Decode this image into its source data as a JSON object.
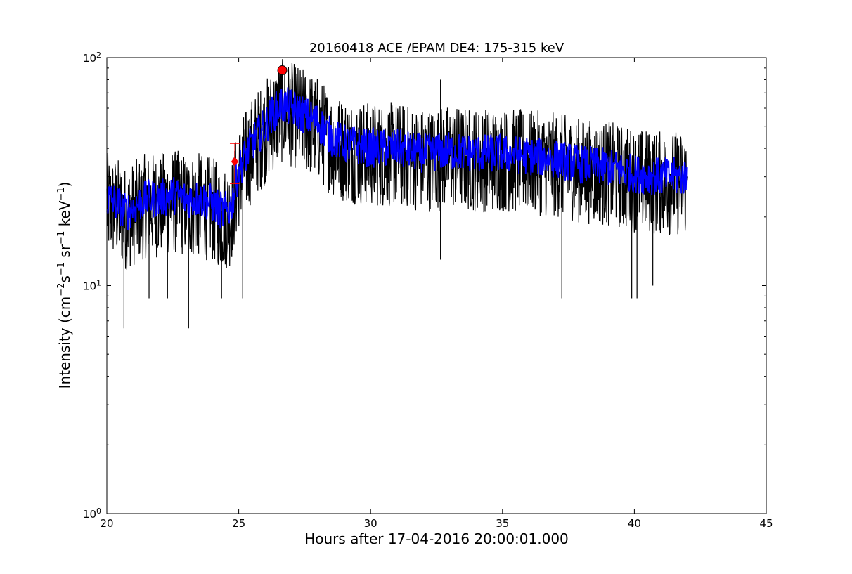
{
  "chart_data": {
    "type": "line",
    "title": "20160418 ACE /EPAM DE4: 175-315 keV",
    "xlabel": "Hours after 17-04-2016 20:00:01.000",
    "ylabel": {
      "prefix": "Intensity (cm",
      "exp1": "−2",
      "s": "s",
      "exp2": "−1",
      "sr": " sr",
      "exp3": "−1",
      "kev": " keV",
      "exp4": "−1",
      "suffix": ")"
    },
    "xlim": [
      20,
      45
    ],
    "ylim": [
      1,
      100
    ],
    "yscale": "log",
    "grid": false,
    "x_ticks": [
      20,
      25,
      30,
      35,
      40,
      45
    ],
    "x_tick_labels": [
      "20",
      "25",
      "30",
      "35",
      "40",
      "45"
    ],
    "y_ticks": [
      {
        "value": 1,
        "base": "10",
        "exp": "0"
      },
      {
        "value": 10,
        "base": "10",
        "exp": "1"
      },
      {
        "value": 100,
        "base": "10",
        "exp": "2"
      }
    ],
    "series": [
      {
        "role": "raw",
        "color": "#000000",
        "points": [
          [
            20.0,
            24
          ],
          [
            20.4,
            23
          ],
          [
            20.7,
            21
          ],
          [
            21.0,
            22
          ],
          [
            21.5,
            24
          ],
          [
            22.0,
            24
          ],
          [
            22.5,
            25
          ],
          [
            23.0,
            24
          ],
          [
            23.5,
            24
          ],
          [
            24.0,
            23
          ],
          [
            24.4,
            21
          ],
          [
            24.7,
            22
          ],
          [
            25.0,
            32
          ],
          [
            25.3,
            38
          ],
          [
            25.6,
            44
          ],
          [
            26.0,
            50
          ],
          [
            26.3,
            57
          ],
          [
            26.6,
            62
          ],
          [
            27.0,
            60
          ],
          [
            27.3,
            58
          ],
          [
            27.6,
            55
          ],
          [
            28.0,
            52
          ],
          [
            28.5,
            45
          ],
          [
            29.0,
            42
          ],
          [
            30.0,
            40
          ],
          [
            31.0,
            40
          ],
          [
            32.0,
            38
          ],
          [
            33.0,
            39
          ],
          [
            34.0,
            38
          ],
          [
            35.0,
            38
          ],
          [
            36.0,
            37
          ],
          [
            37.0,
            36
          ],
          [
            38.0,
            34
          ],
          [
            39.0,
            33
          ],
          [
            40.0,
            31
          ],
          [
            41.0,
            30
          ],
          [
            42.0,
            30
          ]
        ],
        "spread_low": 0.55,
        "spread_high": 1.6
      },
      {
        "role": "smoothed",
        "color": "#0000ff",
        "points": [
          [
            20.0,
            24
          ],
          [
            20.4,
            23
          ],
          [
            20.7,
            21
          ],
          [
            21.0,
            22
          ],
          [
            21.5,
            24
          ],
          [
            22.0,
            24
          ],
          [
            22.5,
            25
          ],
          [
            23.0,
            24
          ],
          [
            23.5,
            24
          ],
          [
            24.0,
            23
          ],
          [
            24.4,
            21
          ],
          [
            24.7,
            22
          ],
          [
            25.0,
            32
          ],
          [
            25.3,
            38
          ],
          [
            25.6,
            44
          ],
          [
            26.0,
            50
          ],
          [
            26.3,
            57
          ],
          [
            26.6,
            62
          ],
          [
            27.0,
            60
          ],
          [
            27.3,
            58
          ],
          [
            27.6,
            55
          ],
          [
            28.0,
            52
          ],
          [
            28.5,
            45
          ],
          [
            29.0,
            42
          ],
          [
            30.0,
            40
          ],
          [
            31.0,
            40
          ],
          [
            32.0,
            38
          ],
          [
            33.0,
            39
          ],
          [
            34.0,
            38
          ],
          [
            35.0,
            38
          ],
          [
            36.0,
            37
          ],
          [
            37.0,
            36
          ],
          [
            38.0,
            34
          ],
          [
            39.0,
            33
          ],
          [
            40.0,
            31
          ],
          [
            41.0,
            30
          ],
          [
            42.0,
            30
          ]
        ],
        "spread_low": 0.82,
        "spread_high": 1.22
      }
    ],
    "markers": [
      {
        "type": "circle",
        "x": 26.65,
        "y": 88,
        "color": "#ff0000"
      },
      {
        "type": "diamond",
        "x": 24.85,
        "y": 35,
        "color": "#ff0000"
      }
    ],
    "error_bar": {
      "x": 24.85,
      "y_low": 28,
      "y_high": 42,
      "color": "#ff0000"
    },
    "spikes": [
      {
        "x": 20.65,
        "y": 6.5
      },
      {
        "x": 23.1,
        "y": 6.5
      },
      {
        "x": 21.6,
        "y": 8.8
      },
      {
        "x": 22.3,
        "y": 8.8
      },
      {
        "x": 24.35,
        "y": 8.8
      },
      {
        "x": 25.15,
        "y": 8.8
      },
      {
        "x": 32.65,
        "y": 13
      },
      {
        "x": 37.25,
        "y": 8.8
      },
      {
        "x": 39.9,
        "y": 8.8
      },
      {
        "x": 40.1,
        "y": 8.8
      },
      {
        "x": 40.7,
        "y": 10
      },
      {
        "x": 26.5,
        "y": 88
      },
      {
        "x": 27.2,
        "y": 85
      },
      {
        "x": 32.65,
        "y": 80
      }
    ]
  }
}
